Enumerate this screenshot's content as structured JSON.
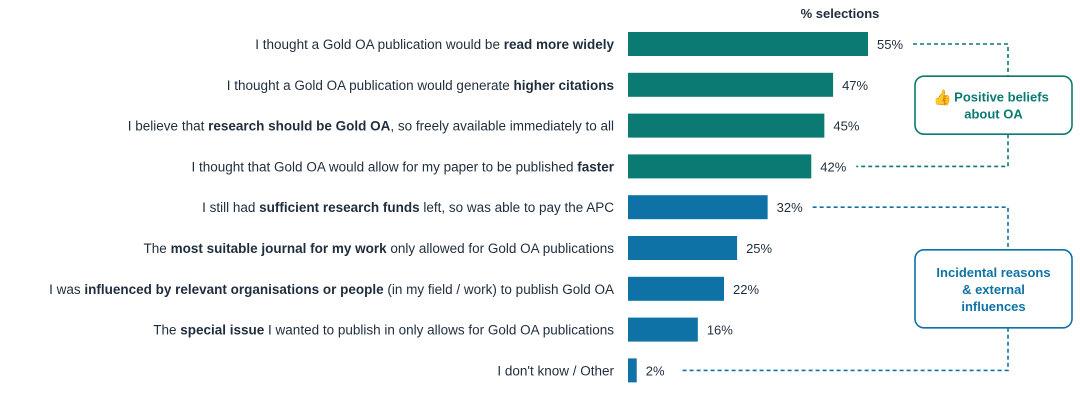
{
  "chart_data": {
    "type": "bar",
    "orientation": "horizontal",
    "value_header": "% selections",
    "unit": "%",
    "categories": [
      [
        {
          "t": "I thought a Gold OA publication would be "
        },
        {
          "t": "read more widely",
          "b": true
        }
      ],
      [
        {
          "t": "I thought a Gold OA publication would generate "
        },
        {
          "t": "higher citations",
          "b": true
        }
      ],
      [
        {
          "t": "I believe that "
        },
        {
          "t": "research should be Gold OA",
          "b": true
        },
        {
          "t": ", so freely available immediately to all"
        }
      ],
      [
        {
          "t": "I thought that Gold OA would allow for my paper to be published "
        },
        {
          "t": "faster",
          "b": true
        }
      ],
      [
        {
          "t": "I still had "
        },
        {
          "t": "sufficient research funds",
          "b": true
        },
        {
          "t": " left, so was able to pay the APC"
        }
      ],
      [
        {
          "t": "The "
        },
        {
          "t": "most suitable journal for my work",
          "b": true
        },
        {
          "t": " only allowed for Gold OA publications"
        }
      ],
      [
        {
          "t": "I was "
        },
        {
          "t": "influenced by relevant organisations or people",
          "b": true
        },
        {
          "t": " (in my field / work) to publish Gold OA"
        }
      ],
      [
        {
          "t": "The "
        },
        {
          "t": "special issue",
          "b": true
        },
        {
          "t": " I wanted to publish in only allows for Gold OA publications"
        }
      ],
      [
        {
          "t": "I don't know / Other"
        }
      ]
    ],
    "values": [
      55,
      47,
      45,
      42,
      32,
      25,
      22,
      16,
      2
    ],
    "value_labels": [
      "55%",
      "47%",
      "45%",
      "42%",
      "32%",
      "25%",
      "22%",
      "16%",
      "2%"
    ],
    "groups": [
      {
        "name": "Positive beliefs about OA",
        "lines": [
          "Positive beliefs",
          "about OA"
        ],
        "icon": "thumbs-up-icon",
        "icon_glyph": "👍",
        "color": "#0b7a72",
        "start": 0,
        "end": 3
      },
      {
        "name": "Incidental reasons & external influences",
        "lines": [
          "Incidental reasons",
          "& external",
          "influences"
        ],
        "icon": "",
        "color": "#0f72a7",
        "start": 4,
        "end": 8
      }
    ],
    "xlim": [
      0,
      60
    ],
    "colors": {
      "green": "#0b7a72",
      "blue": "#0f72a7"
    }
  }
}
